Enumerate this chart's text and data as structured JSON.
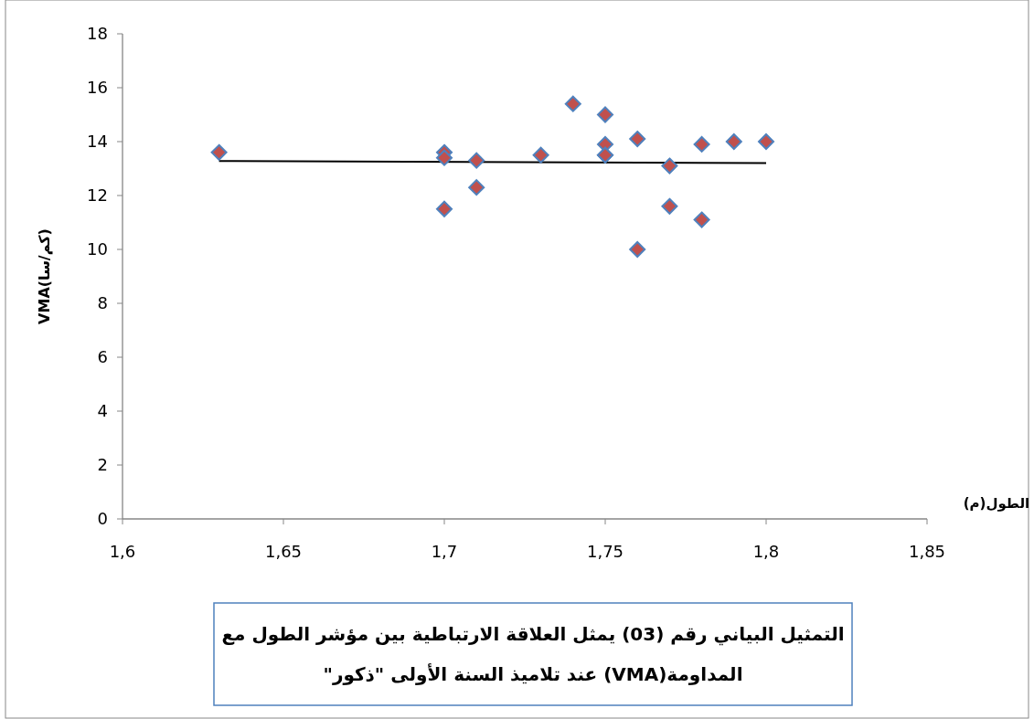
{
  "chart_data": {
    "type": "scatter",
    "title": "التمثيل البياني رقم (03) يمثل العلاقة الارتباطية بين مؤشر الطول مع المداومة(VMA) عند تلاميذ السنة الأولى \"ذكور\"",
    "xlabel": "الطول(م)",
    "ylabel": "VMA(كم/سا)",
    "xlim": [
      1.6,
      1.85
    ],
    "xticks": [
      {
        "value": 1.6,
        "label": "1,6"
      },
      {
        "value": 1.65,
        "label": "1,65"
      },
      {
        "value": 1.7,
        "label": "1,7"
      },
      {
        "value": 1.75,
        "label": "1,75"
      },
      {
        "value": 1.8,
        "label": "1,8"
      },
      {
        "value": 1.85,
        "label": "1,85"
      }
    ],
    "ylim": [
      0,
      18
    ],
    "yticks": [
      0,
      2,
      4,
      6,
      8,
      10,
      12,
      14,
      16,
      18
    ],
    "grid": false,
    "marker": "diamond",
    "series": [
      {
        "color": "#c0504d",
        "x": [
          1.63,
          1.7,
          1.7,
          1.7,
          1.71,
          1.71,
          1.73,
          1.74,
          1.75,
          1.75,
          1.75,
          1.75,
          1.76,
          1.76,
          1.77,
          1.77,
          1.78,
          1.78,
          1.79,
          1.8
        ],
        "values": [
          13.6,
          13.6,
          13.4,
          11.5,
          13.3,
          12.3,
          13.5,
          15.4,
          15.0,
          13.9,
          13.5,
          13.5,
          14.1,
          10.0,
          13.1,
          11.6,
          13.9,
          11.1,
          14.0,
          14.0
        ]
      },
      {
        "type": "line",
        "color": "#000000",
        "marker": "none",
        "line_style": "solid",
        "x": [
          1.63,
          1.8
        ],
        "values": [
          13.28,
          13.2
        ]
      }
    ]
  }
}
